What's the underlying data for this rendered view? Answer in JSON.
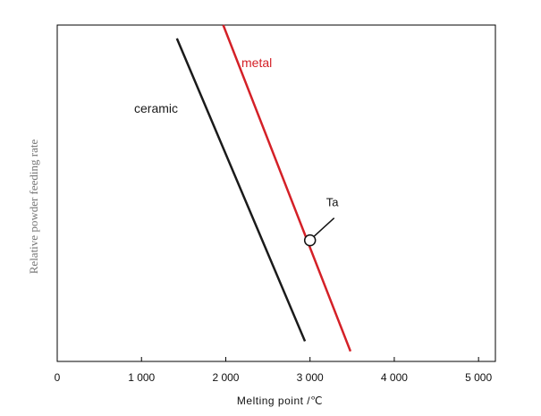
{
  "chart_data": {
    "type": "line",
    "xlabel": "Melting point /℃",
    "ylabel": "Relative powder feeding rate",
    "xlim": [
      0,
      5200
    ],
    "ylim": [
      0,
      100
    ],
    "x_ticks": [
      {
        "value": 0,
        "label": "0"
      },
      {
        "value": 1000,
        "label": "1 000"
      },
      {
        "value": 2000,
        "label": "2 000"
      },
      {
        "value": 3000,
        "label": "3 000"
      },
      {
        "value": 4000,
        "label": "4 000"
      },
      {
        "value": 5000,
        "label": "5 000"
      }
    ],
    "series": [
      {
        "name": "ceramic",
        "color": "#1a1a1a",
        "x": [
          1420,
          2940
        ],
        "y": [
          96,
          6
        ]
      },
      {
        "name": "metal",
        "color": "#d42027",
        "x": [
          1970,
          3480
        ],
        "y": [
          100,
          3
        ]
      }
    ],
    "annotations": [
      {
        "label": "Ta",
        "x": 3000,
        "y": 36,
        "marker": "open-circle"
      }
    ],
    "grid": false,
    "legend": "none"
  }
}
